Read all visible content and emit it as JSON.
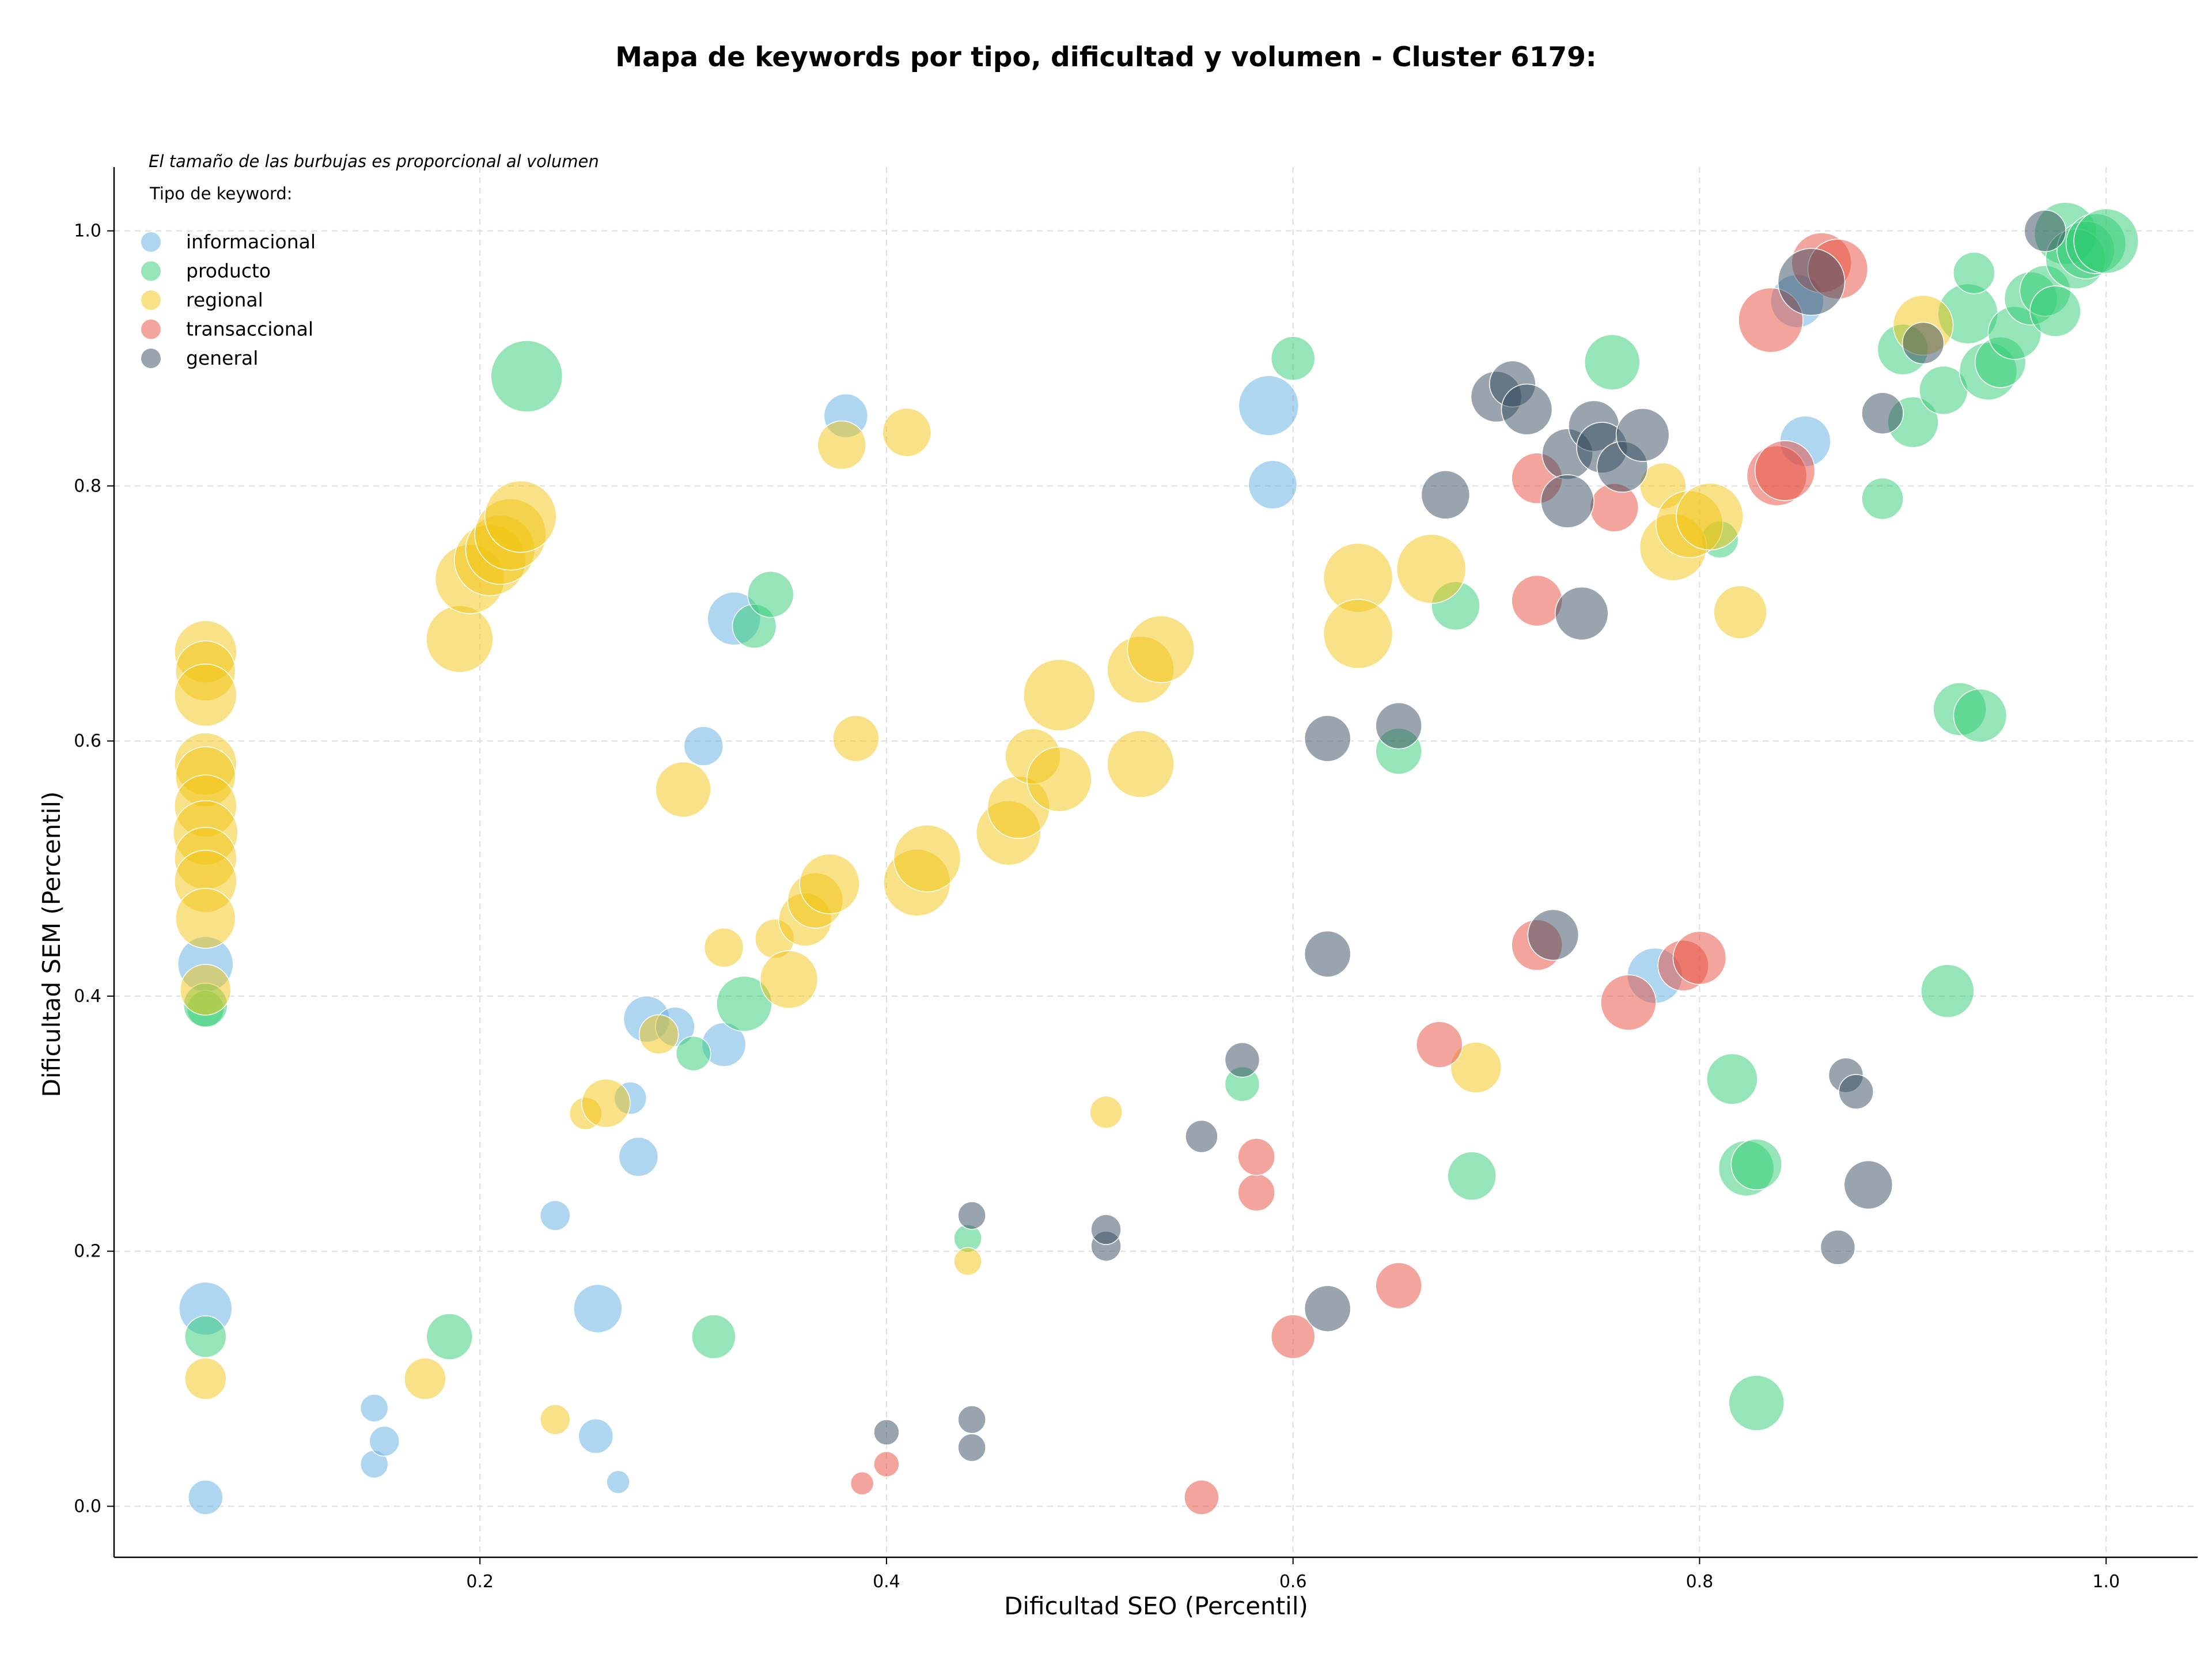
{
  "chart_data": {
    "type": "scatter",
    "title": "Mapa de keywords por tipo, dificultad y volumen - Cluster 6179:",
    "xlabel": "Dificultad SEO (Percentil)",
    "ylabel": "Dificultad SEM (Percentil)",
    "xlim": [
      0.02,
      1.045
    ],
    "ylim": [
      -0.04,
      1.05
    ],
    "x_ticks": [
      0.2,
      0.4,
      0.6,
      0.8,
      1.0
    ],
    "y_ticks": [
      0.0,
      0.2,
      0.4,
      0.6,
      0.8,
      1.0
    ],
    "x_tick_labels": [
      "0.2",
      "0.4",
      "0.6",
      "0.8",
      "1.0"
    ],
    "y_tick_labels": [
      "0.0",
      "0.2",
      "0.4",
      "0.6",
      "0.8",
      "1.0"
    ],
    "grid": true,
    "note": "El tamaño de las burbujas es proporcional al volumen",
    "legend_title": "Tipo de keyword:",
    "legend_position": "top-left",
    "series": [
      {
        "name": "informacional",
        "color": "#5dade2",
        "points": [
          [
            0.065,
            0.007,
            30
          ],
          [
            0.065,
            0.155,
            46
          ],
          [
            0.065,
            0.425,
            48
          ],
          [
            0.148,
            0.077,
            24
          ],
          [
            0.148,
            0.033,
            24
          ],
          [
            0.153,
            0.051,
            26
          ],
          [
            0.237,
            0.228,
            26
          ],
          [
            0.258,
            0.155,
            42
          ],
          [
            0.257,
            0.055,
            30
          ],
          [
            0.268,
            0.019,
            20
          ],
          [
            0.274,
            0.32,
            28
          ],
          [
            0.278,
            0.274,
            34
          ],
          [
            0.282,
            0.382,
            40
          ],
          [
            0.296,
            0.376,
            34
          ],
          [
            0.31,
            0.596,
            34
          ],
          [
            0.32,
            0.362,
            38
          ],
          [
            0.325,
            0.696,
            46
          ],
          [
            0.38,
            0.855,
            38
          ],
          [
            0.588,
            0.863,
            52
          ],
          [
            0.59,
            0.801,
            42
          ],
          [
            0.778,
            0.416,
            48
          ],
          [
            0.852,
            0.835,
            44
          ],
          [
            0.848,
            0.945,
            46
          ]
        ]
      },
      {
        "name": "producto",
        "color": "#2ecc71",
        "points": [
          [
            0.065,
            0.39,
            32
          ],
          [
            0.065,
            0.393,
            38
          ],
          [
            0.065,
            0.133,
            36
          ],
          [
            0.185,
            0.133,
            40
          ],
          [
            0.223,
            0.886,
            62
          ],
          [
            0.305,
            0.355,
            30
          ],
          [
            0.315,
            0.133,
            38
          ],
          [
            0.33,
            0.394,
            48
          ],
          [
            0.335,
            0.69,
            38
          ],
          [
            0.343,
            0.715,
            40
          ],
          [
            0.44,
            0.21,
            24
          ],
          [
            0.575,
            0.331,
            30
          ],
          [
            0.6,
            0.9,
            38
          ],
          [
            0.652,
            0.592,
            40
          ],
          [
            0.68,
            0.706,
            42
          ],
          [
            0.688,
            0.259,
            42
          ],
          [
            0.757,
            0.897,
            48
          ],
          [
            0.81,
            0.758,
            32
          ],
          [
            0.816,
            0.335,
            44
          ],
          [
            0.823,
            0.265,
            48
          ],
          [
            0.828,
            0.268,
            44
          ],
          [
            0.828,
            0.081,
            48
          ],
          [
            0.89,
            0.79,
            36
          ],
          [
            0.9,
            0.907,
            44
          ],
          [
            0.905,
            0.85,
            44
          ],
          [
            0.92,
            0.875,
            42
          ],
          [
            0.922,
            0.404,
            46
          ],
          [
            0.928,
            0.625,
            46
          ],
          [
            0.932,
            0.935,
            52
          ],
          [
            0.935,
            0.967,
            36
          ],
          [
            0.938,
            0.62,
            46
          ],
          [
            0.942,
            0.89,
            50
          ],
          [
            0.948,
            0.897,
            44
          ],
          [
            0.955,
            0.92,
            46
          ],
          [
            0.963,
            0.947,
            46
          ],
          [
            0.97,
            0.953,
            44
          ],
          [
            0.975,
            0.937,
            44
          ],
          [
            0.98,
            0.998,
            54
          ],
          [
            0.985,
            0.978,
            52
          ],
          [
            0.99,
            0.985,
            50
          ],
          [
            0.995,
            0.99,
            52
          ],
          [
            1.0,
            0.992,
            56
          ]
        ]
      },
      {
        "name": "regional",
        "color": "#f1c40f",
        "points": [
          [
            0.065,
            0.67,
            54
          ],
          [
            0.065,
            0.655,
            52
          ],
          [
            0.065,
            0.636,
            54
          ],
          [
            0.065,
            0.582,
            54
          ],
          [
            0.065,
            0.572,
            52
          ],
          [
            0.065,
            0.549,
            54
          ],
          [
            0.065,
            0.528,
            56
          ],
          [
            0.065,
            0.508,
            54
          ],
          [
            0.065,
            0.49,
            54
          ],
          [
            0.065,
            0.461,
            52
          ],
          [
            0.065,
            0.405,
            44
          ],
          [
            0.065,
            0.1,
            36
          ],
          [
            0.173,
            0.1,
            36
          ],
          [
            0.19,
            0.68,
            58
          ],
          [
            0.195,
            0.727,
            60
          ],
          [
            0.205,
            0.742,
            62
          ],
          [
            0.21,
            0.75,
            60
          ],
          [
            0.215,
            0.762,
            62
          ],
          [
            0.22,
            0.776,
            62
          ],
          [
            0.237,
            0.068,
            26
          ],
          [
            0.252,
            0.308,
            28
          ],
          [
            0.262,
            0.316,
            42
          ],
          [
            0.288,
            0.37,
            34
          ],
          [
            0.3,
            0.562,
            48
          ],
          [
            0.32,
            0.438,
            34
          ],
          [
            0.345,
            0.445,
            34
          ],
          [
            0.352,
            0.413,
            50
          ],
          [
            0.36,
            0.46,
            46
          ],
          [
            0.365,
            0.475,
            48
          ],
          [
            0.372,
            0.488,
            52
          ],
          [
            0.378,
            0.832,
            42
          ],
          [
            0.385,
            0.602,
            40
          ],
          [
            0.41,
            0.842,
            42
          ],
          [
            0.415,
            0.489,
            58
          ],
          [
            0.42,
            0.508,
            58
          ],
          [
            0.44,
            0.192,
            24
          ],
          [
            0.46,
            0.528,
            56
          ],
          [
            0.465,
            0.548,
            54
          ],
          [
            0.472,
            0.588,
            48
          ],
          [
            0.485,
            0.636,
            62
          ],
          [
            0.485,
            0.57,
            56
          ],
          [
            0.508,
            0.309,
            28
          ],
          [
            0.525,
            0.582,
            58
          ],
          [
            0.525,
            0.656,
            58
          ],
          [
            0.535,
            0.672,
            58
          ],
          [
            0.632,
            0.728,
            60
          ],
          [
            0.632,
            0.684,
            60
          ],
          [
            0.668,
            0.735,
            60
          ],
          [
            0.69,
            0.344,
            44
          ],
          [
            0.782,
            0.8,
            40
          ],
          [
            0.787,
            0.752,
            58
          ],
          [
            0.795,
            0.77,
            58
          ],
          [
            0.805,
            0.776,
            58
          ],
          [
            0.82,
            0.701,
            46
          ],
          [
            0.91,
            0.926,
            52
          ]
        ]
      },
      {
        "name": "transaccional",
        "color": "#e74c3c",
        "points": [
          [
            0.388,
            0.018,
            20
          ],
          [
            0.4,
            0.033,
            22
          ],
          [
            0.555,
            0.007,
            30
          ],
          [
            0.582,
            0.246,
            32
          ],
          [
            0.582,
            0.274,
            32
          ],
          [
            0.6,
            0.133,
            38
          ],
          [
            0.652,
            0.173,
            40
          ],
          [
            0.672,
            0.362,
            40
          ],
          [
            0.72,
            0.71,
            44
          ],
          [
            0.72,
            0.806,
            44
          ],
          [
            0.72,
            0.44,
            44
          ],
          [
            0.758,
            0.783,
            42
          ],
          [
            0.765,
            0.395,
            48
          ],
          [
            0.792,
            0.424,
            44
          ],
          [
            0.8,
            0.43,
            46
          ],
          [
            0.835,
            0.93,
            56
          ],
          [
            0.838,
            0.808,
            52
          ],
          [
            0.842,
            0.812,
            52
          ],
          [
            0.86,
            0.975,
            52
          ],
          [
            0.868,
            0.97,
            52
          ]
        ]
      },
      {
        "name": "general",
        "color": "#34495e",
        "points": [
          [
            0.4,
            0.058,
            22
          ],
          [
            0.442,
            0.068,
            24
          ],
          [
            0.442,
            0.228,
            24
          ],
          [
            0.442,
            0.046,
            24
          ],
          [
            0.508,
            0.204,
            26
          ],
          [
            0.508,
            0.217,
            26
          ],
          [
            0.555,
            0.29,
            28
          ],
          [
            0.575,
            0.35,
            30
          ],
          [
            0.617,
            0.155,
            40
          ],
          [
            0.617,
            0.433,
            40
          ],
          [
            0.617,
            0.602,
            40
          ],
          [
            0.652,
            0.612,
            40
          ],
          [
            0.675,
            0.793,
            42
          ],
          [
            0.7,
            0.87,
            44
          ],
          [
            0.708,
            0.88,
            40
          ],
          [
            0.715,
            0.86,
            44
          ],
          [
            0.728,
            0.448,
            44
          ],
          [
            0.735,
            0.825,
            44
          ],
          [
            0.735,
            0.788,
            46
          ],
          [
            0.742,
            0.7,
            46
          ],
          [
            0.748,
            0.847,
            44
          ],
          [
            0.752,
            0.83,
            44
          ],
          [
            0.762,
            0.815,
            44
          ],
          [
            0.772,
            0.84,
            46
          ],
          [
            0.855,
            0.96,
            58
          ],
          [
            0.868,
            0.203,
            30
          ],
          [
            0.872,
            0.338,
            30
          ],
          [
            0.877,
            0.325,
            30
          ],
          [
            0.883,
            0.252,
            42
          ],
          [
            0.89,
            0.857,
            36
          ],
          [
            0.91,
            0.912,
            36
          ],
          [
            0.97,
            1.0,
            36
          ]
        ]
      }
    ]
  }
}
